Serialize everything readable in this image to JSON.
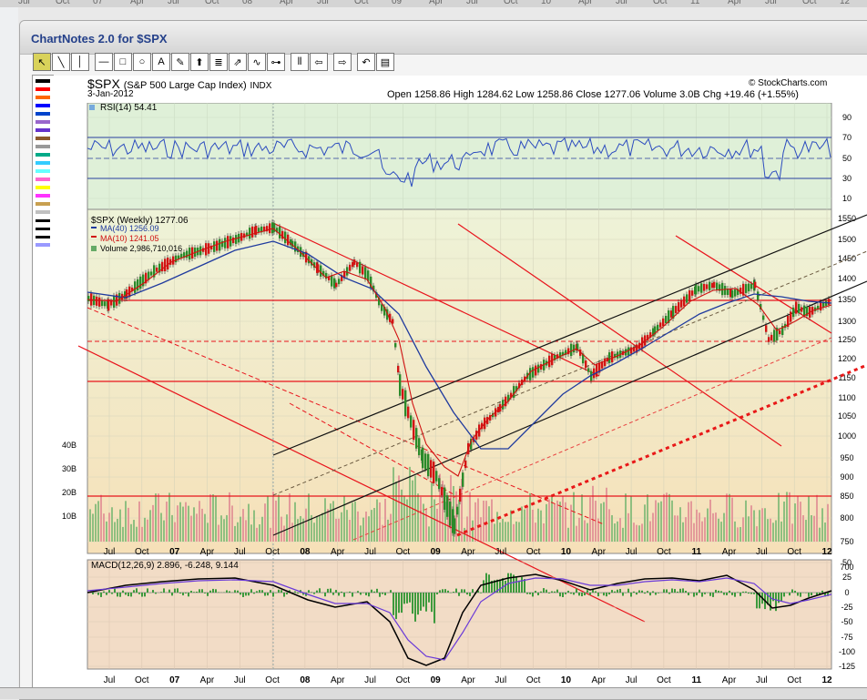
{
  "window": {
    "title": "ChartNotes 2.0 for $SPX"
  },
  "top_strip": [
    "Jul",
    "Oct",
    "07",
    "Apr",
    "Jul",
    "Oct",
    "08",
    "Apr",
    "Jul",
    "Oct",
    "09",
    "Apr",
    "Jul",
    "Oct",
    "10",
    "Apr",
    "Jul",
    "Oct",
    "11",
    "Apr",
    "Jul",
    "Oct",
    "12"
  ],
  "toolbar": [
    {
      "name": "pointer-tool",
      "glyph": "↖"
    },
    {
      "name": "line-tool",
      "glyph": "╲"
    },
    {
      "name": "vertical-line-tool",
      "glyph": "│"
    },
    {
      "name": "horizontal-line-tool",
      "glyph": "—"
    },
    {
      "name": "rectangle-tool",
      "glyph": "□"
    },
    {
      "name": "circle-tool",
      "glyph": "○"
    },
    {
      "name": "text-tool",
      "glyph": "A"
    },
    {
      "name": "pencil-tool",
      "glyph": "✎"
    },
    {
      "name": "arrow-up-tool",
      "glyph": "⬆"
    },
    {
      "name": "fibonacci-tool",
      "glyph": "≣"
    },
    {
      "name": "fan-tool",
      "glyph": "⇗"
    },
    {
      "name": "wave-tool",
      "glyph": "∿"
    },
    {
      "name": "channel-tool",
      "glyph": "⊶"
    },
    {
      "name": "cycle-tool",
      "glyph": "⦀"
    },
    {
      "name": "move-left-tool",
      "glyph": "⇦"
    },
    {
      "name": "move-right-tool",
      "glyph": "⇨"
    },
    {
      "name": "undo-tool",
      "glyph": "↶"
    },
    {
      "name": "settings-tool",
      "glyph": "▤"
    }
  ],
  "palette": [
    "#000000",
    "#ff0000",
    "#ff6600",
    "#0000ff",
    "#0044cc",
    "#9966cc",
    "#6633cc",
    "#8b5a2b",
    "#999999",
    "#00aa88",
    "#33ccff",
    "#66ffff",
    "#ff66cc",
    "#ffff00",
    "#ff33ff",
    "#c8a050",
    "#c0c0c0",
    "#000000",
    "#000000",
    "#000000",
    "#9999ff"
  ],
  "header": {
    "symbol": "$SPX",
    "name": "(S&P 500 Large Cap Index)",
    "exchange": "INDX",
    "date": "3-Jan-2012",
    "credit": "© StockCharts.com",
    "quote": "Open 1258.86  High 1284.62  Low 1258.86  Close 1277.06  Volume 3.0B  Chg +19.46 (+1.55%)"
  },
  "rsi": {
    "label": "RSI(14) 54.41",
    "axis": [
      "90",
      "70",
      "50",
      "30",
      "10"
    ]
  },
  "price": {
    "label": "$SPX (Weekly) 1277.06",
    "ma40": "MA(40) 1256.09",
    "ma10": "MA(10) 1241.05",
    "volume": "Volume 2,986,710,016",
    "axis": [
      "1550",
      "1500",
      "1450",
      "1400",
      "1350",
      "1300",
      "1250",
      "1200",
      "1150",
      "1100",
      "1050",
      "1000",
      "950",
      "900",
      "850",
      "800",
      "750",
      "700"
    ],
    "vol_axis": [
      "40B",
      "30B",
      "20B",
      "10B"
    ]
  },
  "macd": {
    "label": "MACD(12,26,9) 2.896, -6.248, 9.144",
    "axis": [
      "50",
      "25",
      "0",
      "-25",
      "-50",
      "-75",
      "-100",
      "-125"
    ]
  },
  "x_labels": [
    "Jul",
    "Oct",
    "07",
    "Apr",
    "Jul",
    "Oct",
    "08",
    "Apr",
    "Jul",
    "Oct",
    "09",
    "Apr",
    "Jul",
    "Oct",
    "10",
    "Apr",
    "Jul",
    "Oct",
    "11",
    "Apr",
    "Jul",
    "Oct",
    "12"
  ],
  "colors": {
    "rsi_bg": "#dff0d8",
    "price_bg_top": "#eef3d8",
    "price_bg_bottom": "#f6dcc6",
    "macd_bg": "#f2dcc6",
    "trend_red": "#e8141c",
    "channel_black": "#111111",
    "ma40": "#1f3a9e",
    "ma10": "#d01010"
  }
}
